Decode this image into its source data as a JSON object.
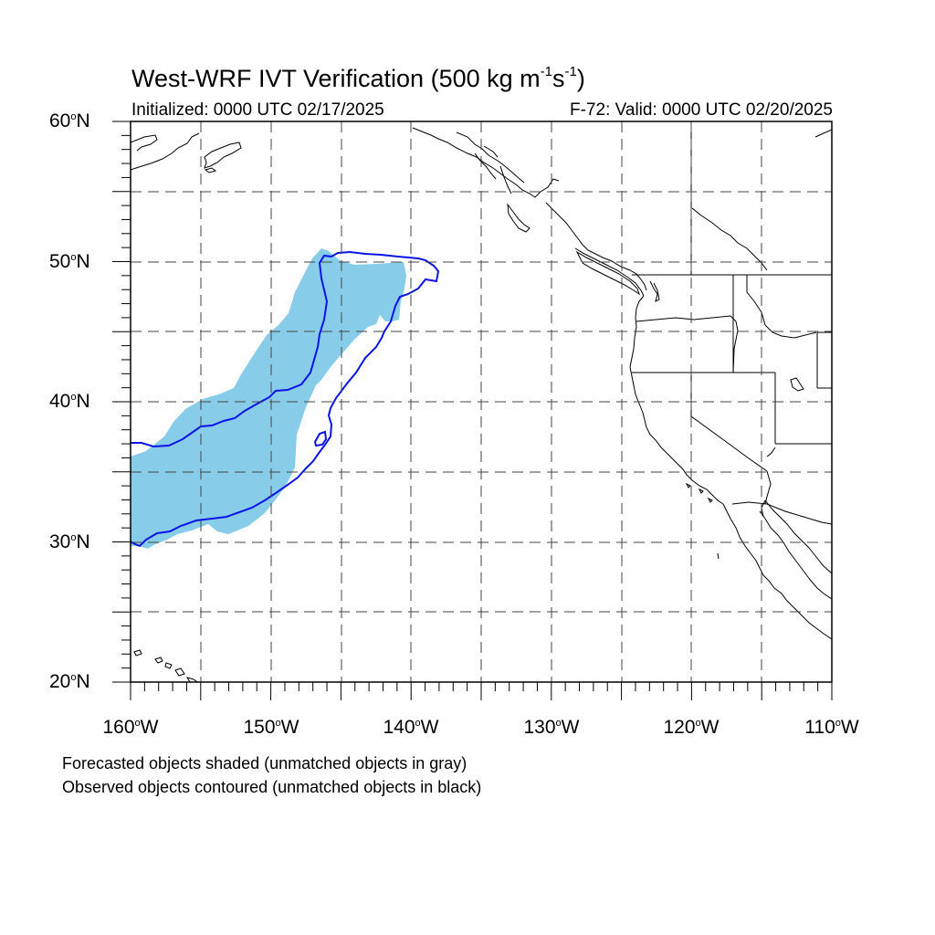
{
  "title": {
    "main": "West-WRF IVT Verification (500 kg m",
    "sup1": "-1",
    "mid": "s",
    "sup2": "-1",
    "end": ")"
  },
  "subtitle_left": "Initialized: 0000 UTC 02/17/2025",
  "subtitle_right": "F-72: Valid: 0000 UTC 02/20/2025",
  "y_axis": {
    "labels": [
      {
        "deg": "60",
        "hem": "N"
      },
      {
        "deg": "50",
        "hem": "N"
      },
      {
        "deg": "40",
        "hem": "N"
      },
      {
        "deg": "30",
        "hem": "N"
      },
      {
        "deg": "20",
        "hem": "N"
      }
    ]
  },
  "x_axis": {
    "labels": [
      {
        "deg": "160",
        "hem": "W"
      },
      {
        "deg": "150",
        "hem": "W"
      },
      {
        "deg": "140",
        "hem": "W"
      },
      {
        "deg": "130",
        "hem": "W"
      },
      {
        "deg": "120",
        "hem": "W"
      },
      {
        "deg": "110",
        "hem": "W"
      }
    ]
  },
  "map": {
    "lon_range": [
      -160,
      -110
    ],
    "lat_range": [
      20,
      60
    ],
    "gridline_spacing_deg": 5,
    "forecast_fill_color": "#87cdea",
    "observed_contour_color": "#0a14e6",
    "coast_color": "#000000"
  },
  "notes": [
    "Forecasted objects shaded (unmatched objects in gray)",
    "Observed objects contoured (unmatched objects in black)"
  ]
}
